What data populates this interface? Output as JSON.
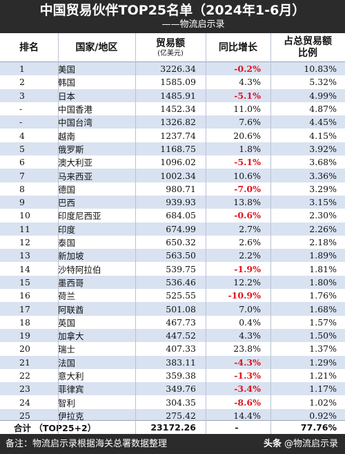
{
  "header": {
    "title": "中国贸易伙伴TOP25名单（2024年1-6月）",
    "subtitle": "——物流启示录"
  },
  "columns": {
    "rank": "排名",
    "country": "国家/地区",
    "trade": "贸易额",
    "trade_unit": "(亿美元)",
    "yoy": "同比增长",
    "share_line1": "占总贸易额",
    "share_line2": "比例"
  },
  "rows": [
    {
      "rank": "1",
      "country": "美国",
      "trade": "3226.34",
      "yoy": "-0.2%",
      "share": "10.83%"
    },
    {
      "rank": "2",
      "country": "韩国",
      "trade": "1585.09",
      "yoy": "4.3%",
      "share": "5.32%"
    },
    {
      "rank": "3",
      "country": "日本",
      "trade": "1485.91",
      "yoy": "-5.1%",
      "share": "4.99%"
    },
    {
      "rank": "-",
      "country": "中国香港",
      "trade": "1452.34",
      "yoy": "11.0%",
      "share": "4.87%"
    },
    {
      "rank": "-",
      "country": "中国台湾",
      "trade": "1326.82",
      "yoy": "7.6%",
      "share": "4.45%"
    },
    {
      "rank": "4",
      "country": "越南",
      "trade": "1237.74",
      "yoy": "20.6%",
      "share": "4.15%"
    },
    {
      "rank": "5",
      "country": "俄罗斯",
      "trade": "1168.75",
      "yoy": "1.8%",
      "share": "3.92%"
    },
    {
      "rank": "6",
      "country": "澳大利亚",
      "trade": "1096.02",
      "yoy": "-5.1%",
      "share": "3.68%"
    },
    {
      "rank": "7",
      "country": "马来西亚",
      "trade": "1002.34",
      "yoy": "10.6%",
      "share": "3.36%"
    },
    {
      "rank": "8",
      "country": "德国",
      "trade": "980.71",
      "yoy": "-7.0%",
      "share": "3.29%"
    },
    {
      "rank": "9",
      "country": "巴西",
      "trade": "939.93",
      "yoy": "13.8%",
      "share": "3.15%"
    },
    {
      "rank": "10",
      "country": "印度尼西亚",
      "trade": "684.05",
      "yoy": "-0.6%",
      "share": "2.30%"
    },
    {
      "rank": "11",
      "country": "印度",
      "trade": "674.99",
      "yoy": "2.7%",
      "share": "2.26%"
    },
    {
      "rank": "12",
      "country": "泰国",
      "trade": "650.32",
      "yoy": "2.6%",
      "share": "2.18%"
    },
    {
      "rank": "13",
      "country": "新加坡",
      "trade": "563.50",
      "yoy": "2.2%",
      "share": "1.89%"
    },
    {
      "rank": "14",
      "country": "沙特阿拉伯",
      "trade": "539.75",
      "yoy": "-1.9%",
      "share": "1.81%"
    },
    {
      "rank": "15",
      "country": "墨西哥",
      "trade": "536.46",
      "yoy": "12.2%",
      "share": "1.80%"
    },
    {
      "rank": "16",
      "country": "荷兰",
      "trade": "525.55",
      "yoy": "-10.9%",
      "share": "1.76%"
    },
    {
      "rank": "17",
      "country": "阿联酋",
      "trade": "501.08",
      "yoy": "7.0%",
      "share": "1.68%"
    },
    {
      "rank": "18",
      "country": "英国",
      "trade": "467.73",
      "yoy": "0.4%",
      "share": "1.57%"
    },
    {
      "rank": "19",
      "country": "加拿大",
      "trade": "447.52",
      "yoy": "4.3%",
      "share": "1.50%"
    },
    {
      "rank": "20",
      "country": "瑞士",
      "trade": "407.33",
      "yoy": "23.8%",
      "share": "1.37%"
    },
    {
      "rank": "21",
      "country": "法国",
      "trade": "383.11",
      "yoy": "-4.3%",
      "share": "1.29%"
    },
    {
      "rank": "22",
      "country": "意大利",
      "trade": "359.38",
      "yoy": "-1.3%",
      "share": "1.21%"
    },
    {
      "rank": "23",
      "country": "菲律宾",
      "trade": "349.76",
      "yoy": "-3.4%",
      "share": "1.17%"
    },
    {
      "rank": "24",
      "country": "智利",
      "trade": "304.35",
      "yoy": "-8.6%",
      "share": "1.02%"
    },
    {
      "rank": "25",
      "country": "伊拉克",
      "trade": "275.42",
      "yoy": "14.4%",
      "share": "0.92%"
    }
  ],
  "total": {
    "label": "合计 （TOP25+2）",
    "trade": "23172.26",
    "yoy": "-",
    "share": "77.76%"
  },
  "footer": {
    "note": "备注：物流启示录根据海关总署数据整理",
    "brand_source": "头条",
    "brand_handle": "@物流启示录"
  },
  "colors": {
    "header_bg": "#2b2b2b",
    "row_shade": "#d9e2f1",
    "negative": "#e0141e"
  }
}
